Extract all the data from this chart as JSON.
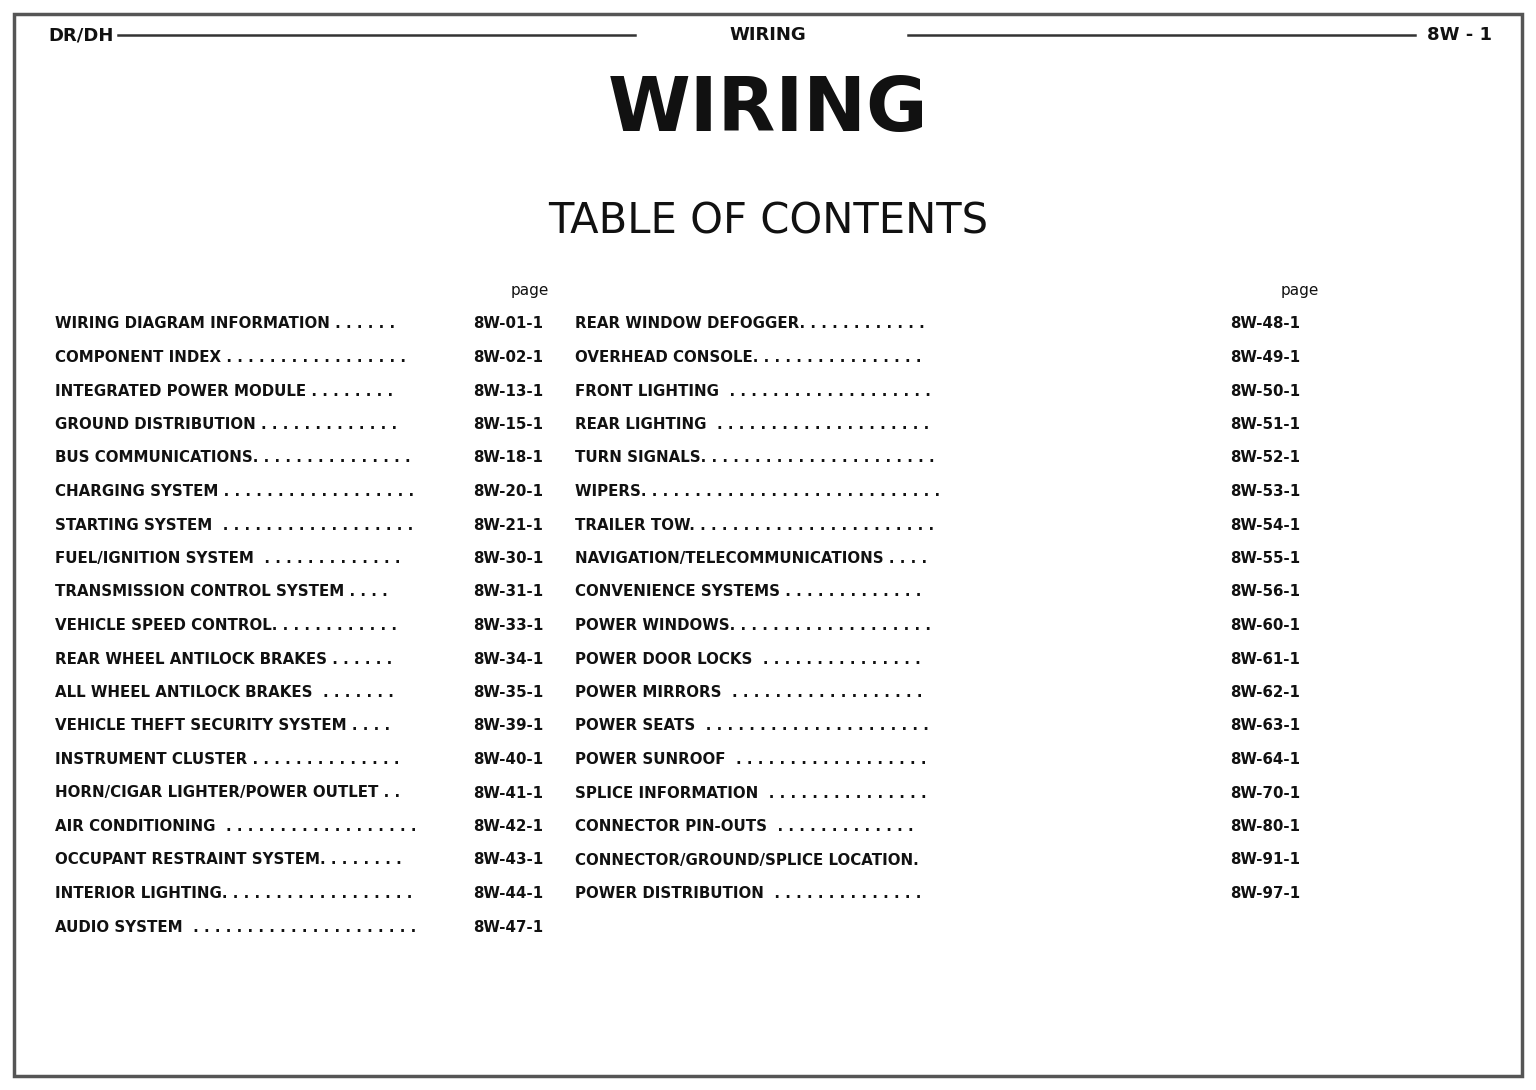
{
  "bg_color": "#ffffff",
  "header_left": "DR/DH",
  "header_center": "WIRING",
  "header_right": "8W - 1",
  "main_title": "WIRING",
  "toc_title": "TABLE OF CONTENTS",
  "page_label": "page",
  "left_entries": [
    [
      "WIRING DIAGRAM INFORMATION . . . . . .",
      "8W-01-1"
    ],
    [
      "COMPONENT INDEX . . . . . . . . . . . . . . . . .",
      "8W-02-1"
    ],
    [
      "INTEGRATED POWER MODULE . . . . . . . .",
      "8W-13-1"
    ],
    [
      "GROUND DISTRIBUTION . . . . . . . . . . . . .",
      "8W-15-1"
    ],
    [
      "BUS COMMUNICATIONS. . . . . . . . . . . . . . .",
      "8W-18-1"
    ],
    [
      "CHARGING SYSTEM . . . . . . . . . . . . . . . . . .",
      "8W-20-1"
    ],
    [
      "STARTING SYSTEM  . . . . . . . . . . . . . . . . . .",
      "8W-21-1"
    ],
    [
      "FUEL/IGNITION SYSTEM  . . . . . . . . . . . . .",
      "8W-30-1"
    ],
    [
      "TRANSMISSION CONTROL SYSTEM . . . .",
      "8W-31-1"
    ],
    [
      "VEHICLE SPEED CONTROL. . . . . . . . . . . .",
      "8W-33-1"
    ],
    [
      "REAR WHEEL ANTILOCK BRAKES . . . . . .",
      "8W-34-1"
    ],
    [
      "ALL WHEEL ANTILOCK BRAKES  . . . . . . .",
      "8W-35-1"
    ],
    [
      "VEHICLE THEFT SECURITY SYSTEM . . . .",
      "8W-39-1"
    ],
    [
      "INSTRUMENT CLUSTER . . . . . . . . . . . . . .",
      "8W-40-1"
    ],
    [
      "HORN/CIGAR LIGHTER/POWER OUTLET . .",
      "8W-41-1"
    ],
    [
      "AIR CONDITIONING  . . . . . . . . . . . . . . . . . .",
      "8W-42-1"
    ],
    [
      "OCCUPANT RESTRAINT SYSTEM. . . . . . . .",
      "8W-43-1"
    ],
    [
      "INTERIOR LIGHTING. . . . . . . . . . . . . . . . . .",
      "8W-44-1"
    ],
    [
      "AUDIO SYSTEM  . . . . . . . . . . . . . . . . . . . . .",
      "8W-47-1"
    ]
  ],
  "right_entries": [
    [
      "REAR WINDOW DEFOGGER. . . . . . . . . . . .",
      "8W-48-1"
    ],
    [
      "OVERHEAD CONSOLE. . . . . . . . . . . . . . . .",
      "8W-49-1"
    ],
    [
      "FRONT LIGHTING  . . . . . . . . . . . . . . . . . . .",
      "8W-50-1"
    ],
    [
      "REAR LIGHTING  . . . . . . . . . . . . . . . . . . . .",
      "8W-51-1"
    ],
    [
      "TURN SIGNALS. . . . . . . . . . . . . . . . . . . . . .",
      "8W-52-1"
    ],
    [
      "WIPERS. . . . . . . . . . . . . . . . . . . . . . . . . . . .",
      "8W-53-1"
    ],
    [
      "TRAILER TOW. . . . . . . . . . . . . . . . . . . . . . .",
      "8W-54-1"
    ],
    [
      "NAVIGATION/TELECOMMUNICATIONS . . . .",
      "8W-55-1"
    ],
    [
      "CONVENIENCE SYSTEMS . . . . . . . . . . . . .",
      "8W-56-1"
    ],
    [
      "POWER WINDOWS. . . . . . . . . . . . . . . . . . .",
      "8W-60-1"
    ],
    [
      "POWER DOOR LOCKS  . . . . . . . . . . . . . . .",
      "8W-61-1"
    ],
    [
      "POWER MIRRORS  . . . . . . . . . . . . . . . . . .",
      "8W-62-1"
    ],
    [
      "POWER SEATS  . . . . . . . . . . . . . . . . . . . . .",
      "8W-63-1"
    ],
    [
      "POWER SUNROOF  . . . . . . . . . . . . . . . . . .",
      "8W-64-1"
    ],
    [
      "SPLICE INFORMATION  . . . . . . . . . . . . . . .",
      "8W-70-1"
    ],
    [
      "CONNECTOR PIN-OUTS  . . . . . . . . . . . . .",
      "8W-80-1"
    ],
    [
      "CONNECTOR/GROUND/SPLICE LOCATION.",
      "8W-91-1"
    ],
    [
      "POWER DISTRIBUTION  . . . . . . . . . . . . . .",
      "8W-97-1"
    ]
  ]
}
